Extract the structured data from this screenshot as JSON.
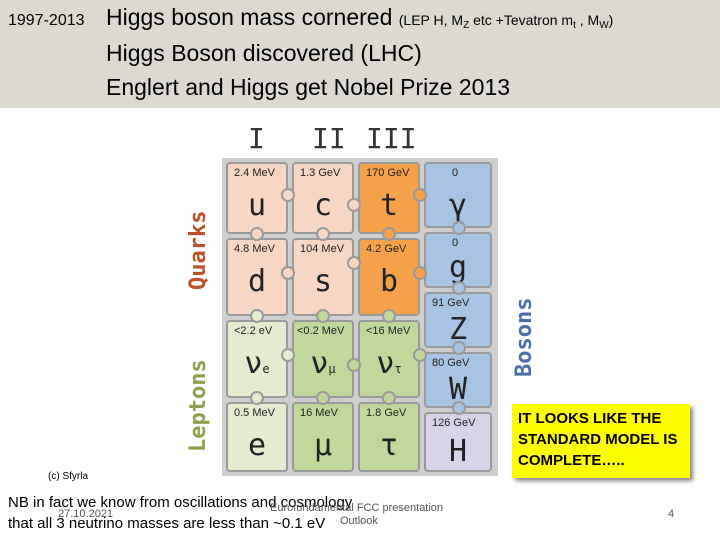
{
  "header": {
    "year": "1997-2013",
    "line1_main": "Higgs boson mass cornered",
    "line1_paren_a": "(LEP H, M",
    "line1_sub_z": "Z",
    "line1_paren_b": " etc +Tevatron m",
    "line1_sub_t": "t",
    "line1_paren_c": " , M",
    "line1_sub_w": "W",
    "line1_paren_d": ")",
    "line2": "Higgs Boson discovered (LHC)",
    "line3": "Englert and Higgs get Nobel Prize 2013"
  },
  "table": {
    "generations": [
      "I",
      "II",
      "III"
    ],
    "label_quarks": "Quarks",
    "label_leptons": "Leptons",
    "label_bosons": "Bosons",
    "cells": [
      {
        "mass": "2.4 MeV",
        "symbol": "u",
        "sub": ""
      },
      {
        "mass": "1.3 GeV",
        "symbol": "c",
        "sub": ""
      },
      {
        "mass": "170 GeV",
        "symbol": "t",
        "sub": ""
      },
      {
        "mass": "0",
        "symbol": "γ",
        "sub": ""
      },
      {
        "mass": "4.8 MeV",
        "symbol": "d",
        "sub": ""
      },
      {
        "mass": "104 MeV",
        "symbol": "s",
        "sub": ""
      },
      {
        "mass": "4.2 GeV",
        "symbol": "b",
        "sub": ""
      },
      {
        "mass": "0",
        "symbol": "g",
        "sub": ""
      },
      {
        "mass": "<2.2 eV",
        "symbol": "ν",
        "sub": "e"
      },
      {
        "mass": "<0.2 MeV",
        "symbol": "ν",
        "sub": "μ"
      },
      {
        "mass": "<16 MeV",
        "symbol": "ν",
        "sub": "τ"
      },
      {
        "mass": "91 GeV",
        "symbol": "Z",
        "sub": ""
      },
      {
        "mass": "0.5 MeV",
        "symbol": "e",
        "sub": ""
      },
      {
        "mass": "16 MeV",
        "symbol": "μ",
        "sub": ""
      },
      {
        "mass": "1.8 GeV",
        "symbol": "τ",
        "sub": ""
      },
      {
        "mass": "80 GeV",
        "symbol": "W",
        "sub": ""
      },
      {
        "mass": "126 GeV",
        "symbol": "H",
        "sub": ""
      }
    ],
    "colors": {
      "quark": "#f7d7c4",
      "quark_heavy": "#f4a14a",
      "lepton": "#e4eccf",
      "lepton_mid": "#c2d89a",
      "boson": "#a7c4e4",
      "higgs": "#d9d3ea"
    }
  },
  "callout": "IT LOOKS LIKE THE STANDARD MODEL IS COMPLETE…..",
  "credit": "(c) Sfyrla",
  "note_line1": "NB in fact we know from oscillations and cosmology",
  "note_line2": "that  all 3 neutrino masses are less than ~0.1 eV",
  "footer": {
    "date": "27.10.2021",
    "title": "Eurofundamental FCC presentation",
    "subtitle": "Outlook",
    "page": "4"
  }
}
